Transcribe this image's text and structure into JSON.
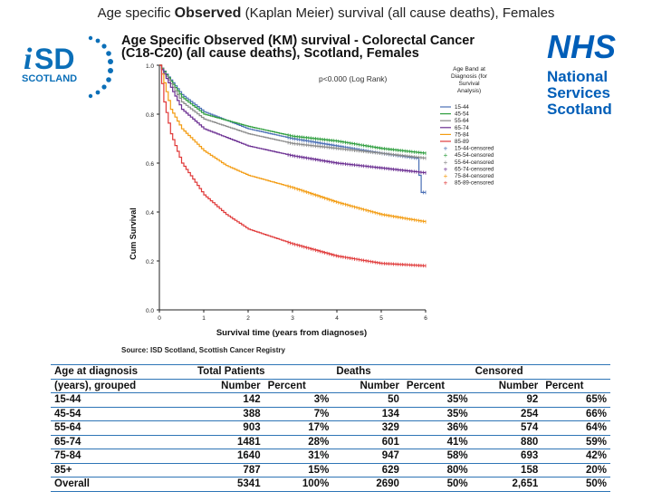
{
  "slide": {
    "title_pre": "Age specific",
    "title_emph": "Observed",
    "title_post": "(Kaplan Meier) survival (all cause deaths), Females"
  },
  "isd_logo": {
    "letter_i": "i",
    "letters_sd": "SD",
    "scotland": "SCOTLAND",
    "color": "#0b6fb8"
  },
  "nhs_logo": {
    "nhs": "NHS",
    "line1": "National",
    "line2": "Services",
    "line3": "Scotland",
    "color": "#005eb8"
  },
  "chart_data": {
    "type": "line",
    "title_line1": "Age Specific Observed (KM) survival - Colorectal Cancer",
    "title_line2": "(C18-C20) (all cause deaths), Scotland, Females",
    "xlabel": "Survival time (years from diagnoses)",
    "ylabel": "Cum Survival",
    "xlim": [
      0,
      6
    ],
    "ylim": [
      0,
      1
    ],
    "x_ticks": [
      0,
      1,
      2,
      3,
      4,
      5,
      6
    ],
    "y_ticks": [
      "0.0",
      "0.2",
      "0.4",
      "0.6",
      "0.8",
      "1.0"
    ],
    "y_tick_values": [
      0,
      0.2,
      0.4,
      0.6,
      0.8,
      1.0
    ],
    "annotation": "p<0.000 (Log Rank)",
    "legend_title": [
      "Age Band at",
      "Diagnosis (for",
      "Survival",
      "Analysis)"
    ],
    "legend_position": "right",
    "series": [
      {
        "name": "15-44",
        "color": "#4a6fb5",
        "x": [
          0,
          0.5,
          1,
          2,
          3,
          4,
          5,
          5.8,
          5.9,
          6
        ],
        "y": [
          1,
          0.88,
          0.81,
          0.74,
          0.7,
          0.67,
          0.64,
          0.62,
          0.48,
          0.48
        ]
      },
      {
        "name": "45-54",
        "color": "#2e9e3e",
        "x": [
          0,
          0.5,
          1,
          2,
          3,
          4,
          5,
          6
        ],
        "y": [
          1,
          0.87,
          0.8,
          0.75,
          0.71,
          0.69,
          0.66,
          0.64
        ]
      },
      {
        "name": "55-64",
        "color": "#8a8a8a",
        "x": [
          0,
          0.5,
          1,
          2,
          3,
          4,
          5,
          6
        ],
        "y": [
          1,
          0.85,
          0.78,
          0.72,
          0.68,
          0.66,
          0.64,
          0.62
        ]
      },
      {
        "name": "65-74",
        "color": "#6a2d91",
        "x": [
          0,
          0.5,
          1,
          2,
          3,
          4,
          5,
          6
        ],
        "y": [
          1,
          0.82,
          0.74,
          0.67,
          0.63,
          0.6,
          0.58,
          0.56
        ]
      },
      {
        "name": "75-84",
        "color": "#f39c12",
        "x": [
          0,
          0.25,
          0.5,
          1,
          1.5,
          2,
          3,
          4,
          5,
          6
        ],
        "y": [
          1,
          0.82,
          0.74,
          0.65,
          0.59,
          0.55,
          0.5,
          0.44,
          0.39,
          0.36
        ]
      },
      {
        "name": "85-89",
        "color": "#e03a3a",
        "x": [
          0,
          0.1,
          0.25,
          0.5,
          1,
          1.5,
          2,
          3,
          4,
          5,
          6
        ],
        "y": [
          1,
          0.85,
          0.72,
          0.6,
          0.47,
          0.39,
          0.33,
          0.27,
          0.22,
          0.19,
          0.18
        ]
      }
    ],
    "censored_legend": [
      {
        "name": "15-44-censored",
        "color": "#4a6fb5"
      },
      {
        "name": "45-54-censored",
        "color": "#2e9e3e"
      },
      {
        "name": "55-64-censored",
        "color": "#8a8a8a"
      },
      {
        "name": "65-74-censored",
        "color": "#6a2d91"
      },
      {
        "name": "75-84-censored",
        "color": "#f39c12"
      },
      {
        "name": "85-89-censored",
        "color": "#e03a3a"
      }
    ]
  },
  "source": "Source: ISD Scotland, Scottish Cancer Registry",
  "table": {
    "h_age1": "Age at diagnosis",
    "h_age2": "(years), grouped",
    "h_total": "Total Patients",
    "h_deaths": "Deaths",
    "h_censored": "Censored",
    "h_number": "Number",
    "h_percent": "Percent",
    "rows": [
      {
        "age": "15-44",
        "tn": "142",
        "tp": "3%",
        "dn": "50",
        "dp": "35%",
        "cn": "92",
        "cp": "65%"
      },
      {
        "age": "45-54",
        "tn": "388",
        "tp": "7%",
        "dn": "134",
        "dp": "35%",
        "cn": "254",
        "cp": "66%"
      },
      {
        "age": "55-64",
        "tn": "903",
        "tp": "17%",
        "dn": "329",
        "dp": "36%",
        "cn": "574",
        "cp": "64%"
      },
      {
        "age": "65-74",
        "tn": "1481",
        "tp": "28%",
        "dn": "601",
        "dp": "41%",
        "cn": "880",
        "cp": "59%"
      },
      {
        "age": "75-84",
        "tn": "1640",
        "tp": "31%",
        "dn": "947",
        "dp": "58%",
        "cn": "693",
        "cp": "42%"
      },
      {
        "age": "85+",
        "tn": "787",
        "tp": "15%",
        "dn": "629",
        "dp": "80%",
        "cn": "158",
        "cp": "20%"
      },
      {
        "age": "Overall",
        "tn": "5341",
        "tp": "100%",
        "dn": "2690",
        "dp": "50%",
        "cn": "2,651",
        "cp": "50%"
      }
    ]
  }
}
